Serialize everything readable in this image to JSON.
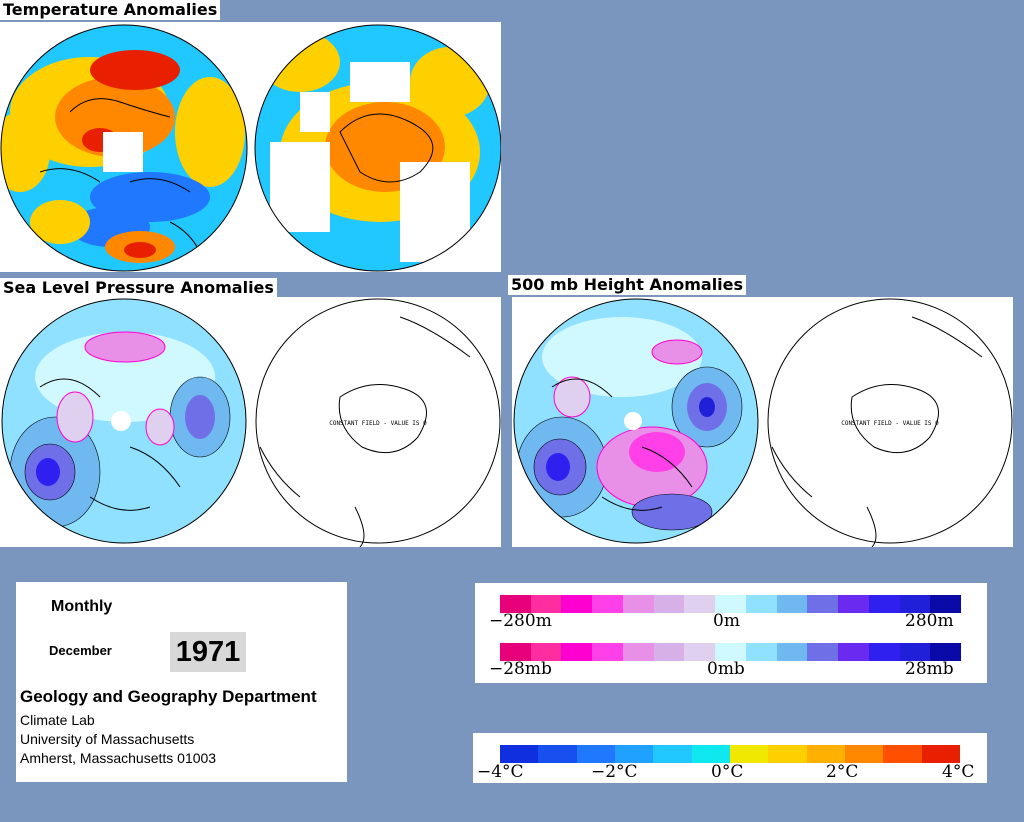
{
  "titles": {
    "temperature": "Temperature Anomalies",
    "slp": "Sea Level Pressure Anomalies",
    "height": "500 mb Height Anomalies"
  },
  "constant_field_text": "CONSTANT FIELD - VALUE IS 0",
  "info": {
    "period": "Monthly",
    "month": "December",
    "year": "1971",
    "department": "Geology and Geography Department",
    "lab": "Climate Lab",
    "university": "University of Massachusetts",
    "address": "Amherst, Massachusetts 01003"
  },
  "colorbars": {
    "height": {
      "min": "−280m",
      "mid": "0m",
      "max": "280m"
    },
    "pressure": {
      "min": "−28mb",
      "mid": "0mb",
      "max": "28mb"
    },
    "temperature": {
      "labels": [
        "−4°C",
        "−2°C",
        "0°C",
        "2°C",
        "4°C"
      ]
    }
  },
  "colors": {
    "background": "#7b96be",
    "anomaly_scale": [
      "#e8007a",
      "#ff2ea0",
      "#ff00d0",
      "#ff40e8",
      "#e890e8",
      "#d8b0e8",
      "#e0d0f0",
      "#d0f8ff",
      "#90e0ff",
      "#70b8f0",
      "#6f6fe8",
      "#6a2af0",
      "#3020f0",
      "#2020d8",
      "#0a0aa8"
    ],
    "temperature_scale": [
      "#1030e0",
      "#1850f0",
      "#2078ff",
      "#20a0ff",
      "#20c8ff",
      "#10e8f0",
      "#f0e800",
      "#ffd000",
      "#ffb000",
      "#ff8800",
      "#ff5000",
      "#e82000"
    ]
  }
}
